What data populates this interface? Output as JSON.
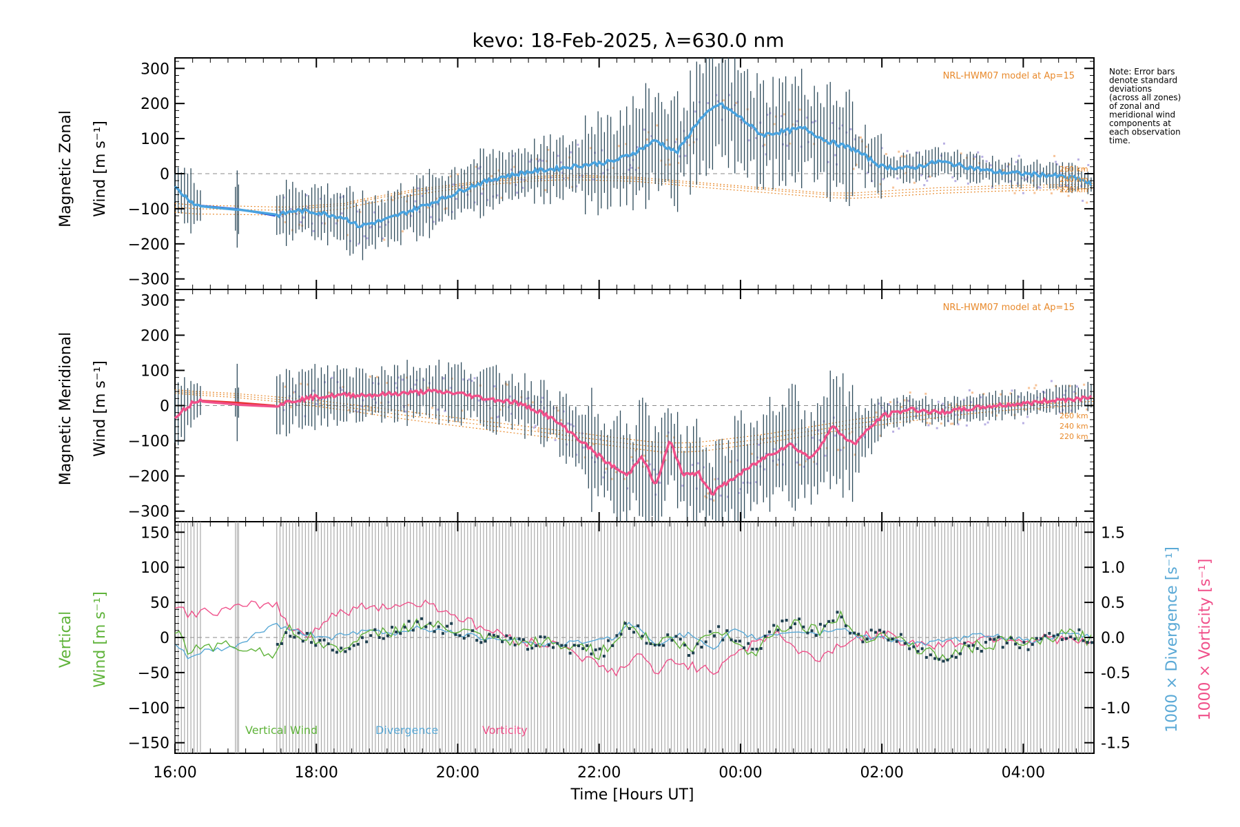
{
  "chart_data": [
    {
      "type": "line",
      "panel": "zonal",
      "title": "kevo: 18-Feb-2025, λ=630.0 nm",
      "ylabel_line1": "Magnetic Zonal",
      "ylabel_line2": "Wind [m s⁻¹]",
      "ylim": [
        -330,
        330
      ],
      "yticks": [
        300,
        200,
        100,
        0,
        -100,
        -200,
        -300
      ],
      "model_label": "NRL-HWM07 model at Ap=15",
      "altitude_labels": [
        "260 km",
        "240 km",
        "220 km"
      ],
      "x_hours": [
        16.0,
        16.3,
        16.8,
        17.42,
        17.7,
        18.0,
        18.4,
        18.6,
        19.0,
        19.4,
        19.8,
        20.2,
        20.6,
        21.0,
        21.4,
        21.8,
        22.2,
        22.5,
        22.8,
        23.1,
        23.4,
        23.7,
        24.0,
        24.3,
        24.6,
        24.9,
        25.2,
        25.6,
        26.0,
        26.4,
        26.8,
        27.2,
        27.6,
        28.0,
        28.4,
        28.8,
        29.0
      ],
      "series": [
        {
          "name": "Magnetic Zonal Wind",
          "values": [
            -40,
            -90,
            -98,
            -120,
            -105,
            -110,
            -125,
            -150,
            -130,
            -100,
            -70,
            -35,
            -10,
            5,
            15,
            25,
            35,
            60,
            95,
            60,
            150,
            200,
            160,
            110,
            120,
            130,
            95,
            70,
            20,
            15,
            35,
            20,
            5,
            0,
            -5,
            -15,
            -35
          ]
        },
        {
          "name": "Model 260 km",
          "values": [
            -85,
            -90,
            -92,
            -95,
            -95,
            -90,
            -85,
            -75,
            -60,
            -45,
            -35,
            -25,
            -15,
            -10,
            -5,
            -5,
            -8,
            -10,
            -15,
            -20,
            -25,
            -30,
            -35,
            -40,
            -45,
            -50,
            -55,
            -55,
            -50,
            -45,
            -40,
            -38,
            -35,
            -33,
            -32,
            -30,
            -28
          ]
        },
        {
          "name": "Model 240 km",
          "values": [
            -95,
            -100,
            -102,
            -104,
            -102,
            -96,
            -90,
            -80,
            -65,
            -50,
            -40,
            -30,
            -20,
            -15,
            -10,
            -10,
            -12,
            -15,
            -20,
            -25,
            -30,
            -35,
            -40,
            -45,
            -50,
            -55,
            -60,
            -62,
            -58,
            -53,
            -48,
            -45,
            -42,
            -40,
            -38,
            -36,
            -34
          ]
        },
        {
          "name": "Model 220 km",
          "values": [
            -110,
            -115,
            -116,
            -118,
            -115,
            -108,
            -100,
            -90,
            -75,
            -60,
            -48,
            -38,
            -28,
            -22,
            -18,
            -18,
            -20,
            -22,
            -27,
            -32,
            -38,
            -43,
            -48,
            -53,
            -58,
            -63,
            -68,
            -70,
            -66,
            -61,
            -56,
            -53,
            -50,
            -48,
            -46,
            -44,
            -42
          ]
        }
      ]
    },
    {
      "type": "line",
      "panel": "meridional",
      "ylabel_line1": "Magnetic Meridional",
      "ylabel_line2": "Wind [m s⁻¹]",
      "ylim": [
        -330,
        330
      ],
      "yticks": [
        300,
        200,
        100,
        0,
        -100,
        -200,
        -300
      ],
      "model_label": "NRL-HWM07 model at Ap=15",
      "altitude_labels": [
        "260 km",
        "240 km",
        "220 km"
      ],
      "x_hours": [
        16.0,
        16.3,
        16.8,
        17.42,
        17.7,
        18.0,
        18.4,
        18.8,
        19.2,
        19.6,
        20.0,
        20.4,
        20.8,
        21.2,
        21.5,
        21.8,
        22.1,
        22.4,
        22.6,
        22.8,
        23.0,
        23.2,
        23.4,
        23.6,
        23.8,
        24.1,
        24.4,
        24.7,
        25.0,
        25.3,
        25.6,
        26.0,
        26.4,
        26.8,
        27.2,
        27.6,
        28.0,
        28.4,
        28.8,
        29.0
      ],
      "series": [
        {
          "name": "Magnetic Meridional Wind",
          "values": [
            -30,
            15,
            10,
            0,
            15,
            25,
            30,
            30,
            35,
            40,
            35,
            20,
            10,
            -20,
            -60,
            -110,
            -160,
            -200,
            -140,
            -230,
            -100,
            -200,
            -190,
            -250,
            -220,
            -180,
            -140,
            -110,
            -150,
            -60,
            -110,
            -30,
            -10,
            -20,
            -10,
            0,
            5,
            15,
            20,
            30
          ]
        },
        {
          "name": "Model 260 km",
          "values": [
            45,
            40,
            35,
            25,
            20,
            15,
            5,
            -5,
            -15,
            -25,
            -35,
            -45,
            -55,
            -65,
            -72,
            -80,
            -88,
            -95,
            -100,
            -104,
            -106,
            -106,
            -104,
            -100,
            -95,
            -88,
            -80,
            -70,
            -60,
            -50,
            -40,
            -30,
            -20,
            -10,
            0,
            5,
            10,
            15,
            20,
            22
          ]
        },
        {
          "name": "Model 240 km",
          "values": [
            40,
            35,
            30,
            18,
            12,
            6,
            -4,
            -15,
            -26,
            -36,
            -46,
            -56,
            -66,
            -76,
            -84,
            -92,
            -100,
            -108,
            -113,
            -117,
            -119,
            -119,
            -117,
            -113,
            -108,
            -100,
            -92,
            -82,
            -72,
            -62,
            -52,
            -42,
            -32,
            -22,
            -12,
            -6,
            0,
            6,
            10,
            12
          ]
        },
        {
          "name": "Model 220 km",
          "values": [
            35,
            30,
            24,
            12,
            5,
            -2,
            -13,
            -25,
            -37,
            -48,
            -58,
            -68,
            -78,
            -88,
            -96,
            -104,
            -112,
            -120,
            -125,
            -130,
            -132,
            -132,
            -130,
            -126,
            -120,
            -112,
            -104,
            -94,
            -84,
            -74,
            -64,
            -54,
            -44,
            -34,
            -24,
            -16,
            -10,
            -4,
            0,
            2
          ]
        }
      ]
    },
    {
      "type": "line",
      "panel": "vertical",
      "ylabel_line1": "Vertical",
      "ylabel_line2": "Wind [m s⁻¹]",
      "y2label_div": "1000 × Divergence [s⁻¹]",
      "y2label_vort": "1000 × Vorticity [s⁻¹]",
      "ylim": [
        -165,
        165
      ],
      "yticks": [
        150,
        100,
        50,
        0,
        -50,
        -100,
        -150
      ],
      "y2lim": [
        -1.65,
        1.65
      ],
      "y2ticks": [
        1.5,
        1.0,
        0.5,
        0.0,
        -0.5,
        -1.0,
        -1.5
      ],
      "legend": [
        "Vertical Wind",
        "Divergence",
        "Vorticity"
      ],
      "x_hours": [
        16.0,
        16.2,
        16.4,
        16.8,
        17.42,
        17.6,
        17.9,
        18.2,
        18.5,
        18.8,
        19.1,
        19.4,
        19.7,
        20.0,
        20.3,
        20.6,
        20.9,
        21.2,
        21.5,
        21.8,
        22.0,
        22.2,
        22.4,
        22.6,
        22.8,
        23.0,
        23.3,
        23.6,
        23.9,
        24.2,
        24.5,
        24.8,
        25.1,
        25.4,
        25.7,
        26.0,
        26.3,
        26.6,
        26.9,
        27.2,
        27.5,
        27.8,
        28.1,
        28.4,
        28.7,
        29.0
      ],
      "series": [
        {
          "name": "Vertical Wind",
          "values": [
            10,
            -20,
            -10,
            -12,
            -22,
            10,
            0,
            -15,
            -10,
            5,
            10,
            20,
            15,
            10,
            0,
            -5,
            -10,
            -5,
            -15,
            -10,
            -25,
            -5,
            20,
            5,
            -10,
            0,
            -20,
            10,
            0,
            -25,
            15,
            20,
            10,
            30,
            0,
            5,
            -5,
            -20,
            -30,
            -15,
            -10,
            -5,
            -10,
            0,
            5,
            -5
          ]
        },
        {
          "name": "Divergence",
          "values": [
            -0.1,
            -0.3,
            -0.2,
            -0.15,
            0.2,
            0.1,
            0.05,
            0.0,
            0.05,
            0.1,
            0.05,
            0.15,
            0.1,
            0.05,
            0.0,
            0.0,
            -0.05,
            -0.1,
            -0.1,
            -0.05,
            -0.05,
            0.0,
            0.2,
            0.1,
            -0.1,
            0.0,
            0.05,
            -0.2,
            0.1,
            0.0,
            0.05,
            0.1,
            0.05,
            0.15,
            0.0,
            0.0,
            -0.05,
            -0.1,
            -0.05,
            0.0,
            0.05,
            0.0,
            -0.05,
            0.0,
            0.05,
            0.0
          ]
        },
        {
          "name": "Vorticity",
          "values": [
            0.4,
            0.35,
            0.35,
            0.4,
            0.5,
            0.15,
            0.05,
            0.3,
            0.4,
            0.45,
            0.45,
            0.5,
            0.45,
            0.3,
            0.15,
            0.05,
            -0.05,
            -0.1,
            -0.1,
            -0.3,
            -0.4,
            -0.5,
            -0.4,
            -0.2,
            -0.6,
            -0.3,
            -0.4,
            -0.5,
            -0.2,
            -0.1,
            0.1,
            -0.2,
            -0.3,
            -0.1,
            0.0,
            0.05,
            -0.05,
            -0.1,
            -0.1,
            -0.05,
            0.0,
            0.0,
            -0.05,
            0.0,
            -0.05,
            -0.1
          ]
        }
      ]
    }
  ],
  "xaxis": {
    "label": "Time [Hours UT]",
    "xlim_hours": [
      16.0,
      29.0
    ],
    "tick_hours": [
      16,
      18,
      20,
      22,
      24,
      26,
      28
    ],
    "tick_labels": [
      "16:00",
      "18:00",
      "20:00",
      "22:00",
      "00:00",
      "02:00",
      "04:00"
    ]
  },
  "note": [
    "Note: Error bars",
    "denote standard",
    "deviations",
    "(across all zones)",
    "of zonal and",
    "meridional wind",
    "components at",
    "each observation",
    "time."
  ],
  "colors": {
    "zonal": "#4aa3df",
    "zonal_gap": "#1f3fd6",
    "meridional": "#f0508a",
    "meridional_gap": "#e8302f",
    "model": "#e8892b",
    "errbar": "#2d4a5a",
    "vertical": "#5fb33a",
    "divergence": "#5aa9d6",
    "vorticity": "#f0508a",
    "grey_bars": "#9a9a9a",
    "zone_purple": "#b9b0e3",
    "zone_orange": "#f7c49a"
  }
}
